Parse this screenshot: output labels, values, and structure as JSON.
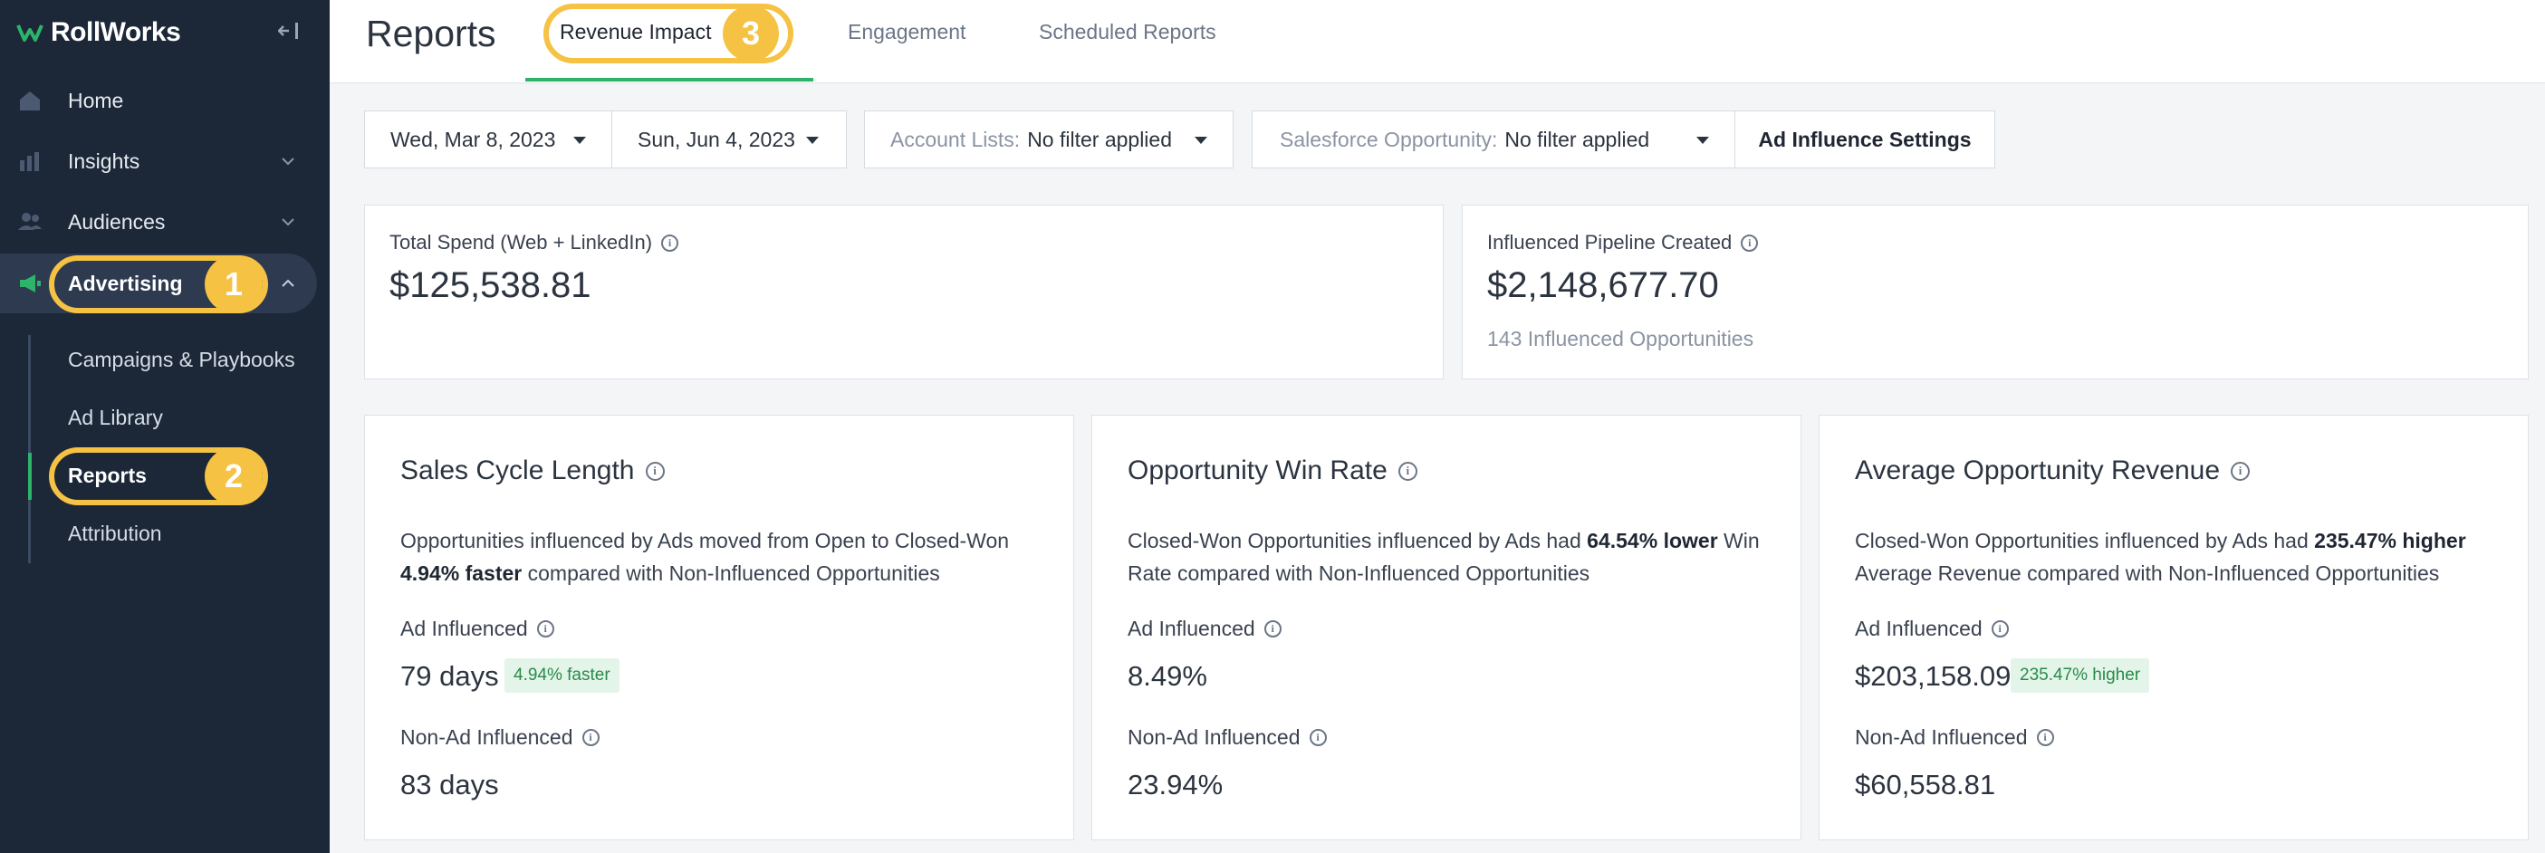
{
  "app": {
    "logo_text": "RollWorks"
  },
  "sidebar": {
    "items": [
      {
        "label": "Home",
        "icon": "home-icon"
      },
      {
        "label": "Insights",
        "icon": "chart-icon"
      },
      {
        "label": "Audiences",
        "icon": "people-icon"
      },
      {
        "label": "Advertising",
        "icon": "megaphone-icon"
      }
    ],
    "sub_items": [
      "Campaigns & Playbooks",
      "Ad Library",
      "Reports",
      "Attribution"
    ]
  },
  "annotations": {
    "badge_1": "1",
    "badge_2": "2",
    "badge_3": "3"
  },
  "header": {
    "title": "Reports",
    "tabs": [
      "Revenue Impact",
      "Engagement",
      "Scheduled Reports"
    ]
  },
  "filters": {
    "start_date": "Wed, Mar 8, 2023",
    "end_date": "Sun, Jun 4, 2023",
    "account_lists_label": "Account Lists:",
    "account_lists_value": "No filter applied",
    "sf_label": "Salesforce Opportunity:",
    "sf_value": "No filter applied",
    "settings_button": "Ad Influence Settings"
  },
  "summary": {
    "spend_label": "Total Spend (Web + LinkedIn)",
    "spend_value": "$125,538.81",
    "pipeline_label": "Influenced Pipeline Created",
    "pipeline_value": "$2,148,677.70",
    "pipeline_note": "143 Influenced Opportunities"
  },
  "metrics": [
    {
      "title": "Sales Cycle Length",
      "desc_pre": "Opportunities influenced by Ads moved from Open to Closed-Won ",
      "desc_bold": "4.94% faster",
      "desc_post": " compared with Non-Influenced Opportunities",
      "ad_label": "Ad Influenced",
      "ad_value": "79 days",
      "ad_badge": "4.94% faster",
      "non_label": "Non-Ad Influenced",
      "non_value": "83 days"
    },
    {
      "title": "Opportunity Win Rate",
      "desc_pre": "Closed-Won Opportunities influenced by Ads had ",
      "desc_bold": "64.54% lower",
      "desc_post": " Win Rate compared with Non-Influenced Opportunities",
      "ad_label": "Ad Influenced",
      "ad_value": "8.49%",
      "ad_badge": "",
      "non_label": "Non-Ad Influenced",
      "non_value": "23.94%"
    },
    {
      "title": "Average Opportunity Revenue",
      "desc_pre": "Closed-Won Opportunities influenced by Ads had ",
      "desc_bold": "235.47% higher",
      "desc_post": " Average Revenue compared with Non-Influenced Opportunities",
      "ad_label": "Ad Influenced",
      "ad_value": "$203,158.09",
      "ad_badge": "235.47% higher",
      "non_label": "Non-Ad Influenced",
      "non_value": "$60,558.81"
    }
  ],
  "colors": {
    "sidebar": "#1c2838",
    "accent": "#2db36a",
    "highlight": "#f5c244"
  }
}
